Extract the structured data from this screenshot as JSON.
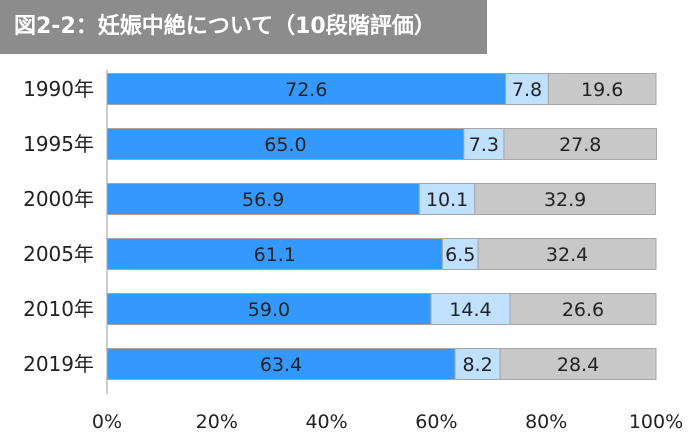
{
  "chart_data": {
    "type": "bar",
    "orientation": "horizontal",
    "stacked": true,
    "title": "図2-2：妊娠中絶について（10段階評価）",
    "categories": [
      "1990年",
      "1995年",
      "2000年",
      "2005年",
      "2010年",
      "2019年"
    ],
    "series": [
      {
        "name": "series-1",
        "color": "#3399ff",
        "values": [
          72.6,
          65.0,
          56.9,
          61.1,
          59.0,
          63.4
        ]
      },
      {
        "name": "series-2",
        "color": "#bfe0ff",
        "values": [
          7.8,
          7.3,
          10.1,
          6.5,
          14.4,
          8.2
        ]
      },
      {
        "name": "series-3",
        "color": "#c8c8c8",
        "values": [
          19.6,
          27.8,
          32.9,
          32.4,
          26.6,
          28.4
        ]
      }
    ],
    "value_labels": [
      [
        "72.6",
        "65.0",
        "56.9",
        "61.1",
        "59.0",
        "63.4"
      ],
      [
        "7.8",
        "7.3",
        "10.1",
        "6.5",
        "14.4",
        "8.2"
      ],
      [
        "19.6",
        "27.8",
        "32.9",
        "32.4",
        "26.6",
        "28.4"
      ]
    ],
    "xlim": [
      0,
      100
    ],
    "xticks": [
      "0%",
      "20%",
      "40%",
      "60%",
      "80%",
      "100%"
    ],
    "grid": false,
    "legend": "none"
  }
}
